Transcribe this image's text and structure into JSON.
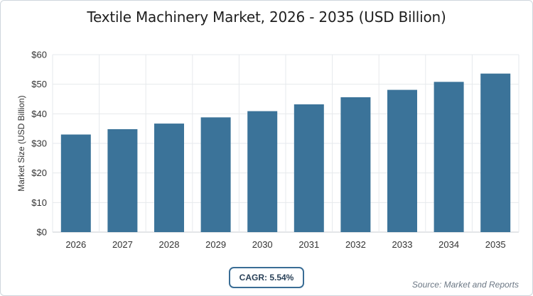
{
  "title": "Textile Machinery Market, 2026 - 2035 (USD Billion)",
  "cagr_label": "CAGR: 5.54%",
  "source": "Source: Market and Reports",
  "colors": {
    "bar": "#3b7399",
    "grid": "#e6e9ec",
    "axis": "#c9cdd2",
    "text": "#333333"
  },
  "chart_data": {
    "type": "bar",
    "categories": [
      "2026",
      "2027",
      "2028",
      "2029",
      "2030",
      "2031",
      "2032",
      "2033",
      "2034",
      "2035"
    ],
    "values": [
      33.0,
      34.8,
      36.7,
      38.8,
      40.9,
      43.2,
      45.6,
      48.1,
      50.8,
      53.6
    ],
    "ylabel": "Market Size (USD Billion)",
    "xlabel": "",
    "ylim": [
      0,
      60
    ],
    "yticks": [
      0,
      10,
      20,
      30,
      40,
      50,
      60
    ],
    "ytick_labels": [
      "$0",
      "$10",
      "$20",
      "$30",
      "$40",
      "$50",
      "$60"
    ],
    "grid": true,
    "legend": "none"
  }
}
